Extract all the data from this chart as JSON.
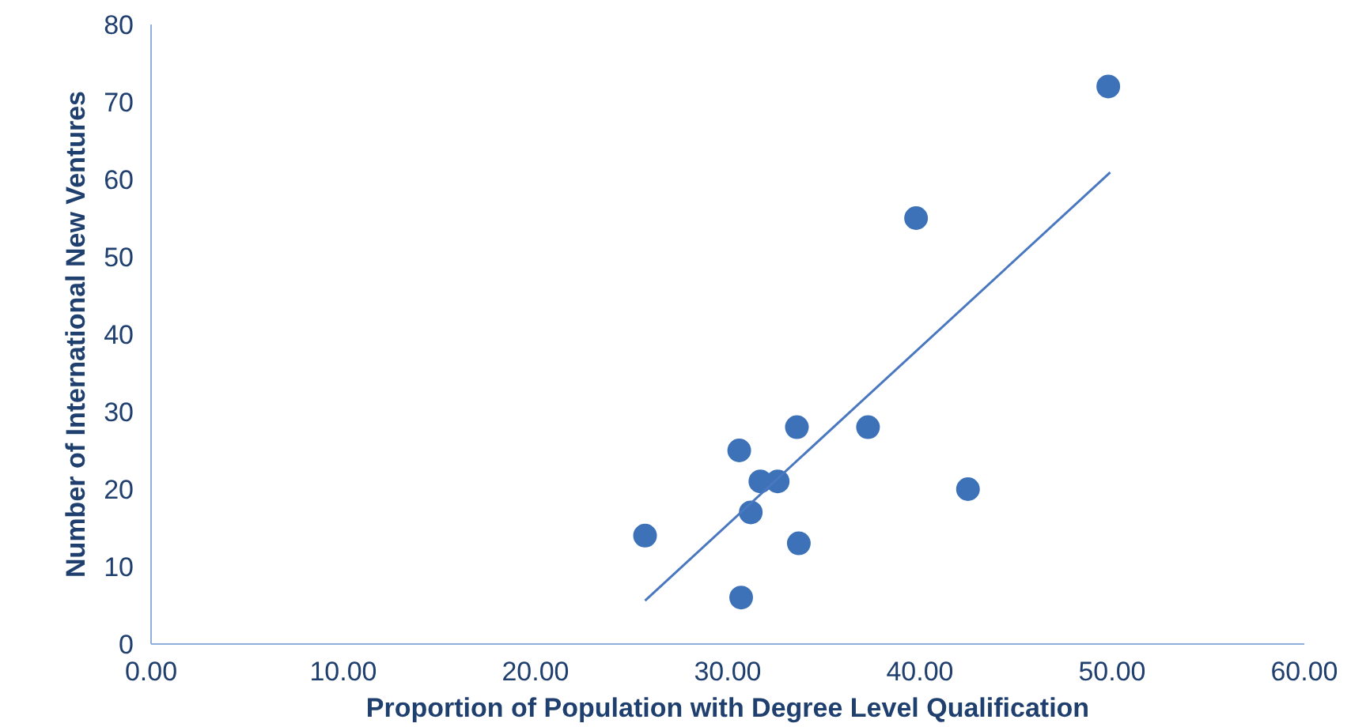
{
  "chart_data": {
    "type": "scatter",
    "xlabel": "Proportion of Population with Degree Level Qualification",
    "ylabel": "Number of International New Ventures",
    "series": [
      {
        "marker": "circle",
        "color": "#3d72b8",
        "x": [
          25.7,
          30.6,
          30.7,
          31.2,
          31.7,
          32.6,
          33.6,
          33.7,
          37.3,
          39.8,
          42.5,
          49.8
        ],
        "values": [
          14,
          25,
          6,
          17,
          21,
          21,
          28,
          13,
          28,
          55,
          20,
          72
        ]
      },
      {
        "type": "line",
        "color": "#4a78c0",
        "x": [
          25.7,
          49.9
        ],
        "values": [
          5.6,
          60.9
        ]
      }
    ],
    "xlim": [
      0,
      60
    ],
    "xticks": [
      {
        "value": 0,
        "label": "0.00"
      },
      {
        "value": 10,
        "label": "10.00"
      },
      {
        "value": 20,
        "label": "20.00"
      },
      {
        "value": 30,
        "label": "30.00"
      },
      {
        "value": 40,
        "label": "40.00"
      },
      {
        "value": 50,
        "label": "50.00"
      },
      {
        "value": 60,
        "label": "60.00"
      }
    ],
    "ylim": [
      0,
      80
    ],
    "yticks": [
      0,
      10,
      20,
      30,
      40,
      50,
      60,
      70,
      80
    ],
    "grid": false
  }
}
